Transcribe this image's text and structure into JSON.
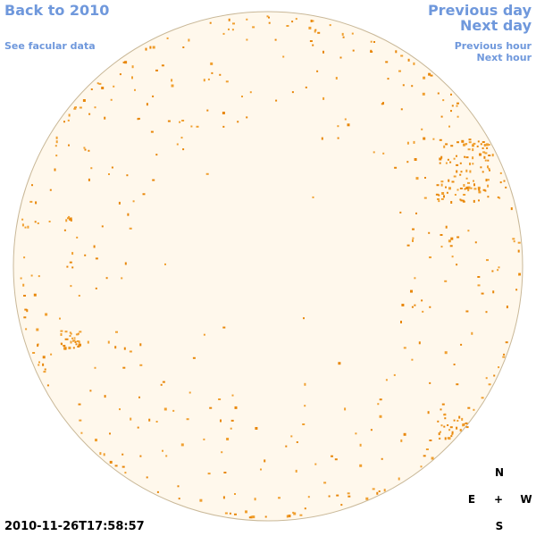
{
  "nav": {
    "back": "Back to 2010",
    "facular": "See facular data",
    "previous_day": "Previous day",
    "next_day": "Next day",
    "previous_hour": "Previous hour",
    "next_hour": "Next hour"
  },
  "timestamp": "2010-11-26T17:58:57",
  "compass": {
    "north": "N",
    "east": "E",
    "center": "+",
    "west": "W",
    "south": "S"
  }
}
